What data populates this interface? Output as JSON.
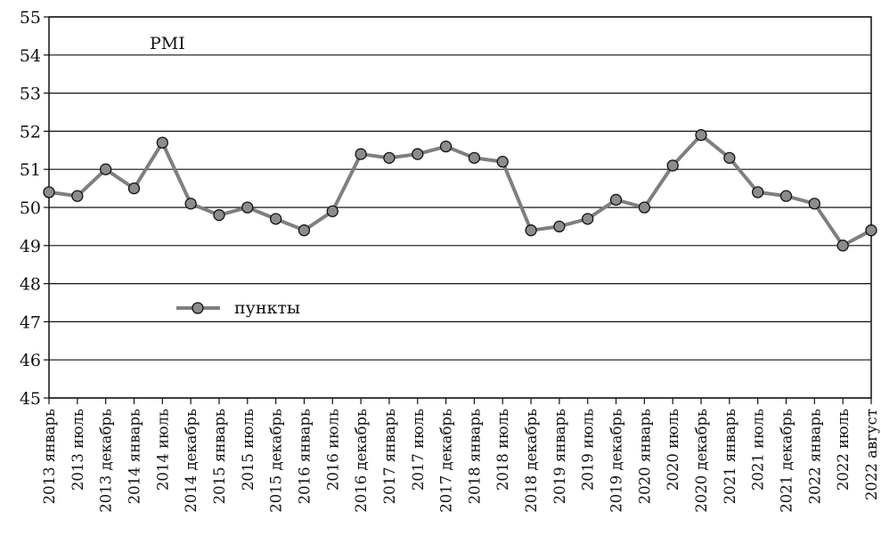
{
  "chart_data": {
    "type": "line",
    "title": "",
    "xlabel": "",
    "ylabel": "",
    "annotation": "PMI",
    "ylim": [
      45,
      55
    ],
    "y_ticks": [
      "45",
      "46",
      "47",
      "48",
      "49",
      "50",
      "51",
      "52",
      "53",
      "54",
      "55"
    ],
    "grid": true,
    "legend_position": "middle-left",
    "categories": [
      "2013 январь",
      "2013 июль",
      "2013 декабрь",
      "2014 январь",
      "2014 июль",
      "2014 декабрь",
      "2015 январь",
      "2015 июль",
      "2015 декабрь",
      "2016 январь",
      "2016 июль",
      "2016 декабрь",
      "2017 январь",
      "2017 июль",
      "2017 декабрь",
      "2018 январь",
      "2018 июль",
      "2018 декабрь",
      "2019 январь",
      "2019 июль",
      "2019 декабрь",
      "2020 январь",
      "2020 июль",
      "2020 декабрь",
      "2021 январь",
      "2021 июль",
      "2021 декабрь",
      "2022 январь",
      "2022 июль",
      "2022 август"
    ],
    "series": [
      {
        "name": "пункты",
        "color": "#7f7f7f",
        "marker_color": "#8c8c8c",
        "values": [
          50.4,
          50.3,
          51.0,
          50.5,
          51.7,
          50.1,
          49.8,
          50.0,
          49.7,
          49.4,
          49.9,
          51.4,
          51.3,
          51.4,
          51.6,
          51.3,
          51.2,
          49.4,
          49.5,
          49.7,
          50.2,
          50.0,
          51.1,
          51.9,
          51.3,
          50.4,
          50.3,
          50.1,
          49.0,
          49.4
        ]
      }
    ]
  }
}
